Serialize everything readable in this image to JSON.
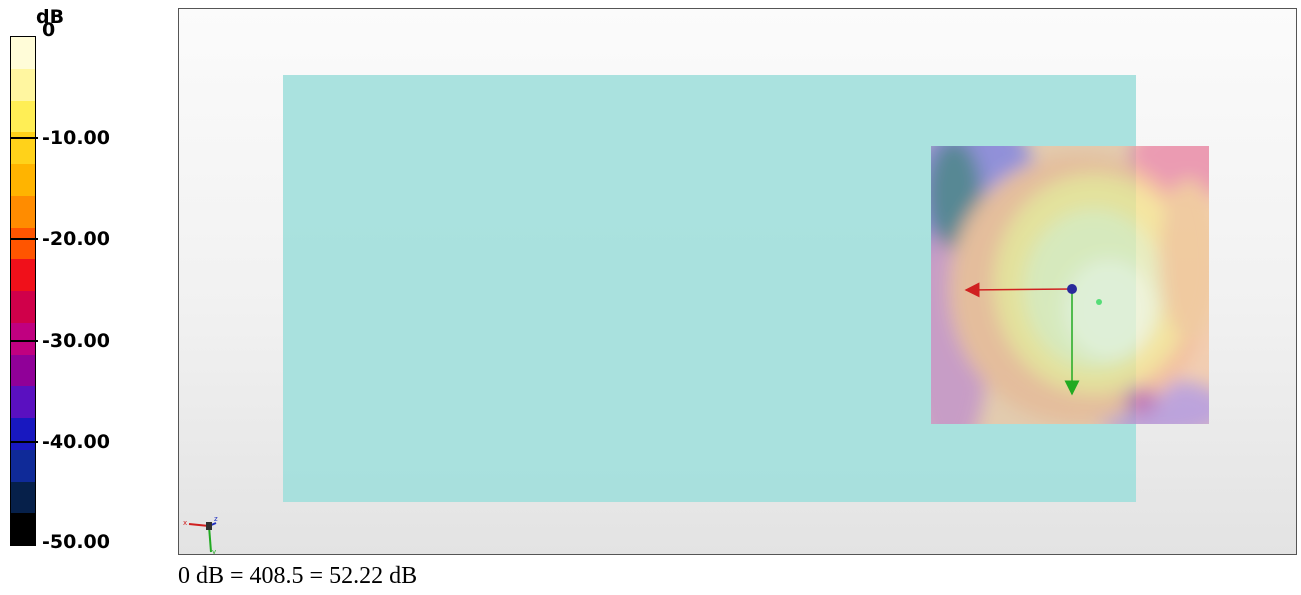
{
  "colorbar": {
    "unit": "dB",
    "labels": [
      "0",
      "-10.00",
      "-20.00",
      "-30.00",
      "-40.00",
      "-50.00"
    ],
    "colors": [
      "#fffcd8",
      "#fff6a0",
      "#ffee55",
      "#ffd21a",
      "#ffb400",
      "#ff8c00",
      "#ff5500",
      "#f0101a",
      "#d0004a",
      "#c00080",
      "#900098",
      "#5a10c0",
      "#1818c0",
      "#0f2a98",
      "#06204a",
      "#000000"
    ]
  },
  "viewport": {
    "plane_color": "#a3dfdc",
    "axis_triad": {
      "x_label": "x",
      "y_label": "y",
      "z_label": "z"
    },
    "probe_vectors": {
      "x_color": "#d02020",
      "y_color": "#22bb22",
      "origin_color": "#2a2a9a"
    }
  },
  "caption": "0 dB = 408.5 = 52.22 dB"
}
